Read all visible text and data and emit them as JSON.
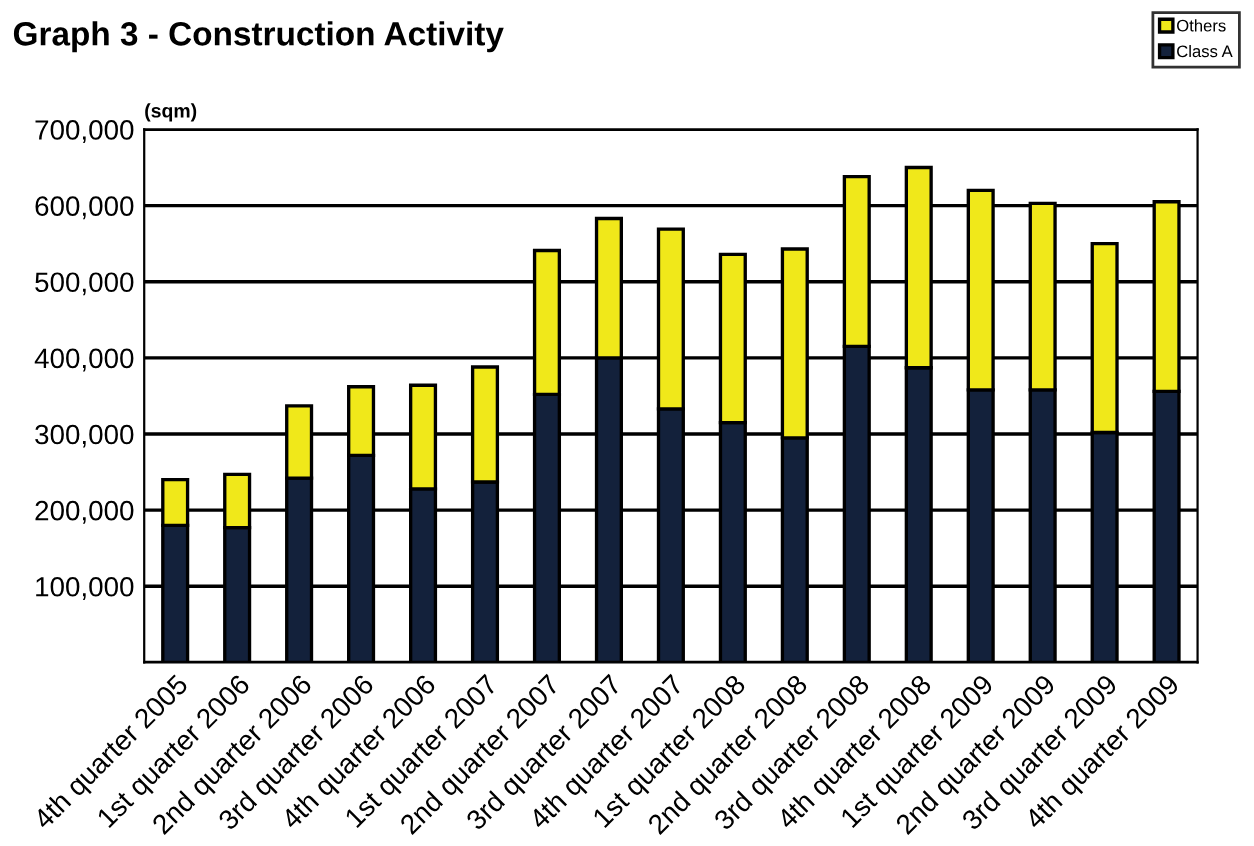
{
  "chart_data": {
    "type": "bar",
    "stacked": true,
    "title": "Graph 3 - Construction Activity",
    "ylabel": "(sqm)",
    "categories": [
      "4th quarter 2005",
      "1st quarter 2006",
      "2nd quarter 2006",
      "3rd quarter 2006",
      "4th quarter 2006",
      "1st quarter 2007",
      "2nd quarter 2007",
      "3rd quarter 2007",
      "4th quarter 2007",
      "1st quarter 2008",
      "2nd quarter 2008",
      "3rd quarter 2008",
      "4th quarter 2008",
      "1st quarter 2009",
      "2nd quarter 2009",
      "3rd quarter 2009",
      "4th quarter 2009"
    ],
    "series": [
      {
        "name": "Class A",
        "color": "#13213b",
        "values": [
          180000,
          177000,
          242000,
          272000,
          228000,
          237000,
          352000,
          400000,
          333000,
          315000,
          295000,
          415000,
          387000,
          358000,
          358000,
          302000,
          356000
        ]
      },
      {
        "name": "Others",
        "color": "#f0e81a",
        "values": [
          60000,
          70000,
          95000,
          90000,
          136000,
          151000,
          189000,
          183000,
          236000,
          221000,
          248000,
          223000,
          263000,
          262000,
          245000,
          248000,
          249000
        ]
      }
    ],
    "ylim": [
      0,
      700000
    ],
    "yticks": [
      {
        "value": 0,
        "label": null
      },
      {
        "value": 100000,
        "label": "100,000"
      },
      {
        "value": 200000,
        "label": "200,000"
      },
      {
        "value": 300000,
        "label": "300,000"
      },
      {
        "value": 400000,
        "label": "400,000"
      },
      {
        "value": 500000,
        "label": "500,000"
      },
      {
        "value": 600000,
        "label": "600,000"
      },
      {
        "value": 700000,
        "label": "700,000"
      }
    ],
    "grid": "y",
    "legend": "top right"
  }
}
